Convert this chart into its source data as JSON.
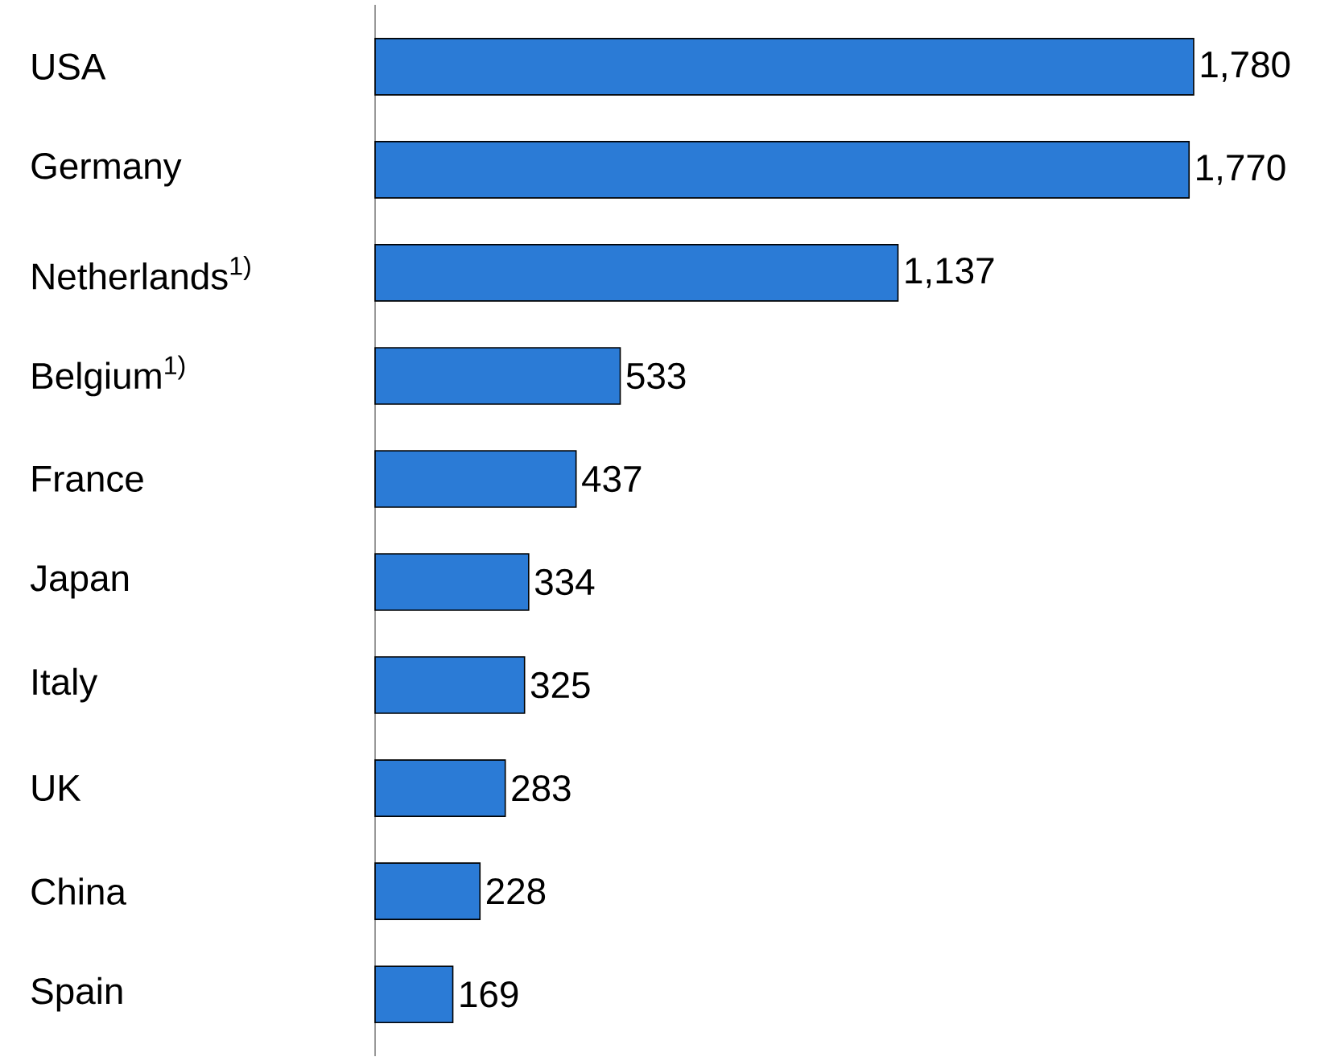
{
  "chart_data": {
    "type": "bar",
    "orientation": "horizontal",
    "categories": [
      "USA",
      "Germany",
      "Netherlands$^{1)}$",
      "Belgium$^{1)}$",
      "France",
      "Japan",
      "Italy",
      "UK",
      "China",
      "Spain"
    ],
    "values": [
      1780,
      1770,
      1137,
      533,
      437,
      334,
      325,
      283,
      228,
      169
    ],
    "value_labels": [
      "1,780",
      "1,770",
      "1,137",
      "533",
      "437",
      "334",
      "325",
      "283",
      "228",
      "169"
    ],
    "color": "#2b7bd6"
  }
}
